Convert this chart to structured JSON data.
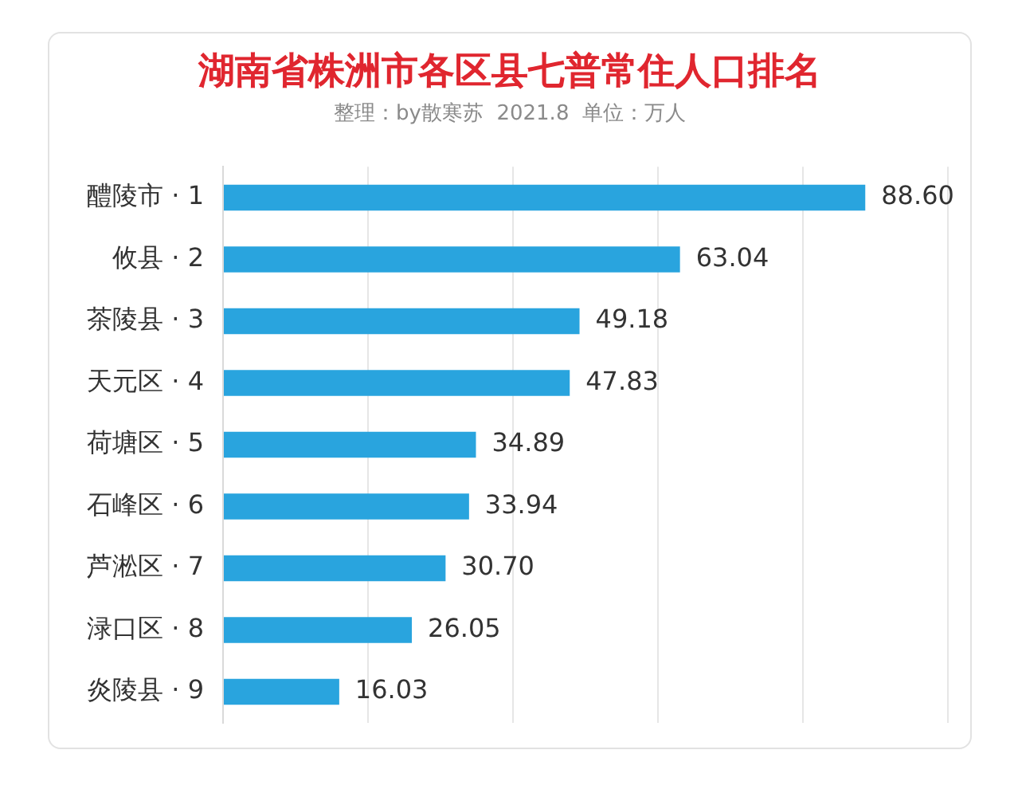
{
  "chart_data": {
    "type": "bar",
    "orientation": "horizontal",
    "title": "湖南省株洲市各区县七普常住人口排名",
    "subtitle": "整理：by散寒苏  2021.8  单位：万人",
    "categories": [
      "醴陵市 · 1",
      "攸县 · 2",
      "茶陵县 · 3",
      "天元区 · 4",
      "荷塘区 · 5",
      "石峰区 · 6",
      "芦淞区 · 7",
      "渌口区 · 8",
      "炎陵县 · 9"
    ],
    "values": [
      88.6,
      63.04,
      49.18,
      47.83,
      34.89,
      33.94,
      30.7,
      26.05,
      16.03
    ],
    "value_labels": [
      "88.60",
      "63.04",
      "49.18",
      "47.83",
      "34.89",
      "33.94",
      "30.70",
      "26.05",
      "16.03"
    ],
    "color": "#29a4de",
    "xlim": [
      0,
      100
    ],
    "xticks": [
      {
        "value": 0,
        "label": null
      },
      {
        "value": 20,
        "label": null
      },
      {
        "value": 40,
        "label": null
      },
      {
        "value": 60,
        "label": null
      },
      {
        "value": 80,
        "label": null
      },
      {
        "value": 100,
        "label": null
      }
    ],
    "grid": "x",
    "tick_labels": "y"
  }
}
